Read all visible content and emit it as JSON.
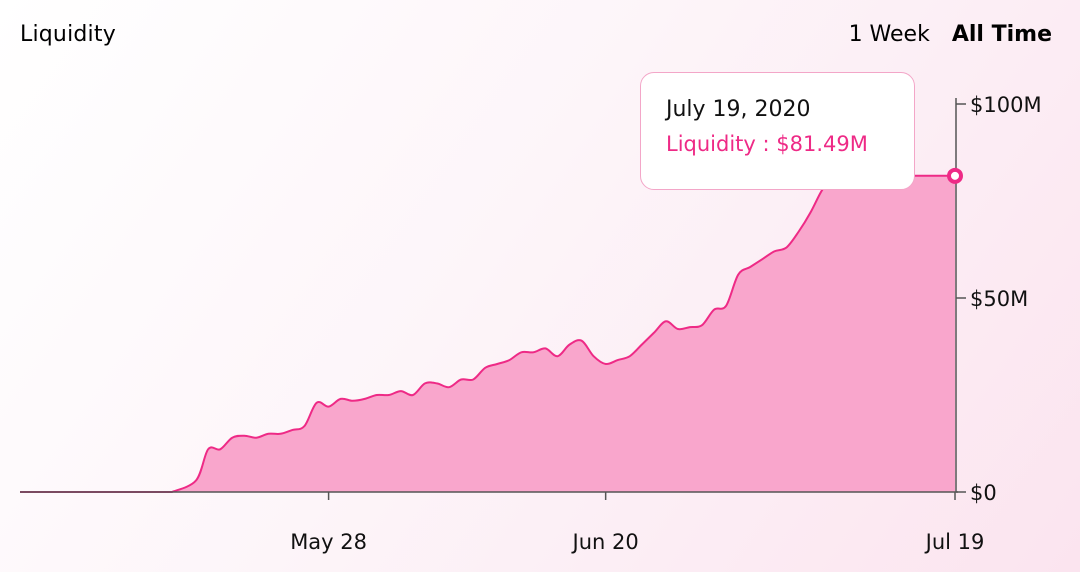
{
  "header": {
    "title": "Liquidity",
    "ranges": [
      {
        "label": "1 Week",
        "active": false
      },
      {
        "label": "All Time",
        "active": true
      }
    ]
  },
  "tooltip": {
    "date": "July 19, 2020",
    "value_text": "Liquidity : $81.49M"
  },
  "colors": {
    "line": "#ee2a86",
    "fill": "#f9a6cc",
    "axis": "#555555"
  },
  "chart_data": {
    "type": "area",
    "title": "Liquidity",
    "y_unit": "USD millions",
    "x": [
      "2020-05-15",
      "2020-05-17",
      "2020-05-18",
      "2020-05-19",
      "2020-05-20",
      "2020-05-21",
      "2020-05-22",
      "2020-05-23",
      "2020-05-24",
      "2020-05-25",
      "2020-05-26",
      "2020-05-27",
      "2020-05-28",
      "2020-05-29",
      "2020-05-30",
      "2020-05-31",
      "2020-06-01",
      "2020-06-02",
      "2020-06-03",
      "2020-06-04",
      "2020-06-05",
      "2020-06-06",
      "2020-06-07",
      "2020-06-08",
      "2020-06-09",
      "2020-06-10",
      "2020-06-11",
      "2020-06-12",
      "2020-06-13",
      "2020-06-14",
      "2020-06-15",
      "2020-06-16",
      "2020-06-17",
      "2020-06-18",
      "2020-06-19",
      "2020-06-20",
      "2020-06-21",
      "2020-06-22",
      "2020-06-23",
      "2020-06-24",
      "2020-06-25",
      "2020-06-26",
      "2020-06-27",
      "2020-06-28",
      "2020-06-29",
      "2020-06-30",
      "2020-07-01",
      "2020-07-02",
      "2020-07-03",
      "2020-07-04",
      "2020-07-05",
      "2020-07-06",
      "2020-07-07",
      "2020-07-08",
      "2020-07-09",
      "2020-07-10",
      "2020-07-11",
      "2020-07-12",
      "2020-07-13",
      "2020-07-14",
      "2020-07-15",
      "2020-07-16",
      "2020-07-17",
      "2020-07-18",
      "2020-07-19"
    ],
    "y": [
      0,
      3,
      11,
      11,
      14,
      14.5,
      14,
      15,
      15,
      16,
      17,
      23,
      22,
      24,
      23.5,
      24,
      25,
      25,
      26,
      25,
      28,
      28,
      27,
      29,
      29,
      32,
      33,
      34,
      36,
      36,
      37,
      35,
      38,
      39,
      35,
      33,
      34,
      35,
      38,
      41,
      44,
      42,
      42.5,
      43,
      47,
      48,
      56,
      58,
      60,
      62,
      63,
      67,
      72,
      78,
      81.49,
      81.49,
      81.49,
      81.49,
      81.49,
      81.49,
      81.49,
      81.49,
      81.49,
      81.49,
      81.49
    ],
    "x_ticks": [
      "May 28",
      "Jun 20",
      "Jul 19"
    ],
    "y_ticks": [
      "$100M",
      "$50M",
      "$0"
    ],
    "ylim": [
      0,
      100
    ],
    "highlighted_point": {
      "date": "July 19, 2020",
      "value": 81.49
    },
    "grid": false,
    "legend": "none"
  }
}
